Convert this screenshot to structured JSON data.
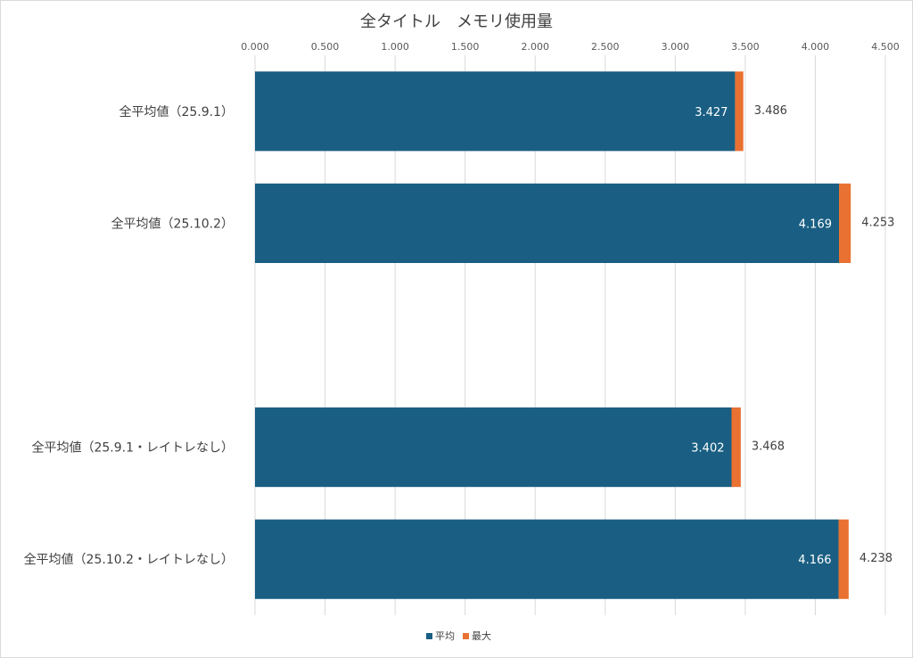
{
  "chart_data": {
    "type": "bar",
    "orientation": "horizontal",
    "stacked": true,
    "title": "全タイトル　メモリ使用量",
    "xlim": [
      0,
      4.5
    ],
    "x_ticks": [
      "0.000",
      "0.500",
      "1.000",
      "1.500",
      "2.000",
      "2.500",
      "3.000",
      "3.500",
      "4.000",
      "4.500"
    ],
    "x_tick_values": [
      0,
      0.5,
      1,
      1.5,
      2,
      2.5,
      3,
      3.5,
      4,
      4.5
    ],
    "x_axis_position": "top",
    "grid": true,
    "legend_position": "bottom",
    "categories": [
      "全平均値（25.9.1）",
      "全平均値（25.10.2）",
      "",
      "全平均値（25.9.1・レイトレなし）",
      "全平均値（25.10.2・レイトレなし）"
    ],
    "series": [
      {
        "name": "平均",
        "color": "#1a5f83",
        "values": [
          3.427,
          4.169,
          null,
          3.402,
          4.166
        ],
        "labels": [
          "3.427",
          "4.169",
          "",
          "3.402",
          "4.166"
        ]
      },
      {
        "name": "最大",
        "color": "#e97132",
        "values": [
          0.059,
          0.084,
          null,
          0.066,
          0.072
        ],
        "labels": [
          "3.486",
          "4.253",
          "",
          "3.468",
          "4.238"
        ]
      }
    ]
  }
}
